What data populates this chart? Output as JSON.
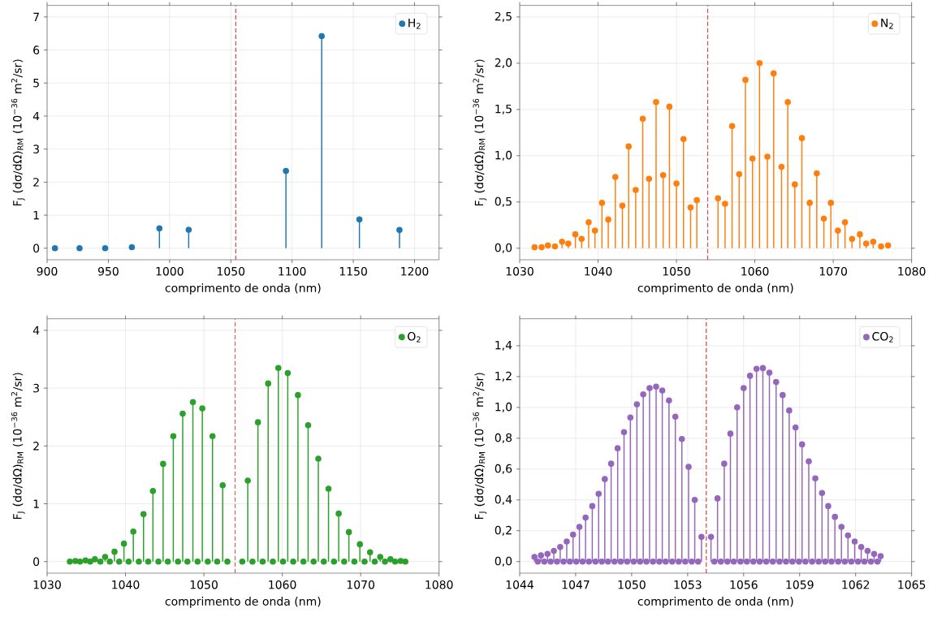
{
  "chart_data": [
    {
      "type": "lollipop",
      "xlabel": "comprimento de onda (nm)",
      "ylabel": "F$_{J}$ (dσ/dΩ)$_{RM}$ (10$^{−36}$ m$^{2}$/sr)",
      "xlim": [
        900,
        1220
      ],
      "ylim": [
        -0.35,
        7.35
      ],
      "xticks": [
        900,
        950,
        1000,
        1050,
        1100,
        1150,
        1200
      ],
      "yticks": [
        0,
        1,
        2,
        3,
        4,
        5,
        6,
        7
      ],
      "grid": true,
      "legend": "top right",
      "marker": "circle",
      "ref_lines": [
        {
          "axis": "x",
          "value": 1054,
          "color": "#d62728",
          "line_style": "dashed"
        }
      ],
      "series": [
        {
          "name": "H$_{2}$",
          "color": "#1f77b4",
          "x": [
            906.4,
            926.5,
            947.4,
            969.2,
            991.7,
            1015.6,
            1095,
            1124.2,
            1155,
            1187.7
          ],
          "values": [
            0,
            0,
            0,
            0.03,
            0.6,
            0.56,
            2.34,
            6.42,
            0.87,
            0.55
          ]
        }
      ]
    },
    {
      "type": "lollipop",
      "xlabel": "comprimento de onda (nm)",
      "ylabel": "F$_{J}$ (dσ/dΩ)$_{RM}$ (10$^{−36}$ m$^{2}$/sr)",
      "xlim": [
        1030,
        1080
      ],
      "ylim": [
        -0.125,
        2.625
      ],
      "xticks": [
        1030,
        1040,
        1050,
        1060,
        1070,
        1080
      ],
      "yticks": [
        {
          "value": 0,
          "label": "0,0"
        },
        {
          "value": 0.5,
          "label": "0,5"
        },
        {
          "value": 1,
          "label": "1,0"
        },
        {
          "value": 1.5,
          "label": "1,5"
        },
        {
          "value": 2,
          "label": "2,0"
        },
        {
          "value": 2.5,
          "label": "2,5"
        }
      ],
      "grid": true,
      "legend": "top right",
      "marker": "circle",
      "ref_lines": [
        {
          "axis": "x",
          "value": 1054,
          "color": "#d62728",
          "line_style": "dashed"
        }
      ],
      "series": [
        {
          "name": "N$_{2}$",
          "color": "#ff7f0e",
          "x": [
            1031.9,
            1032.8,
            1033.6,
            1034.5,
            1035.4,
            1036.2,
            1037.1,
            1037.9,
            1038.8,
            1039.6,
            1040.5,
            1041.3,
            1042.2,
            1043.1,
            1043.9,
            1044.8,
            1045.7,
            1046.5,
            1047.4,
            1048.3,
            1049.1,
            1050.0,
            1050.9,
            1051.8,
            1052.6,
            1055.3,
            1056.2,
            1057.1,
            1058.0,
            1058.8,
            1059.7,
            1060.6,
            1061.6,
            1062.4,
            1063.4,
            1064.2,
            1065.1,
            1066.0,
            1067.0,
            1067.9,
            1068.8,
            1069.7,
            1070.6,
            1071.5,
            1072.4,
            1073.4,
            1074.2,
            1075.1,
            1076.1,
            1077.0
          ],
          "values": [
            0.01,
            0.01,
            0.03,
            0.02,
            0.07,
            0.05,
            0.15,
            0.1,
            0.28,
            0.19,
            0.49,
            0.31,
            0.77,
            0.46,
            1.1,
            0.63,
            1.4,
            0.75,
            1.58,
            0.79,
            1.53,
            0.7,
            1.18,
            0.44,
            0.52,
            0.54,
            0.48,
            1.32,
            0.8,
            1.82,
            0.97,
            2.0,
            0.99,
            1.89,
            0.88,
            1.58,
            0.69,
            1.19,
            0.49,
            0.81,
            0.32,
            0.49,
            0.19,
            0.28,
            0.1,
            0.15,
            0.05,
            0.07,
            0.02,
            0.03
          ]
        }
      ]
    },
    {
      "type": "lollipop",
      "xlabel": "comprimento de onda (nm)",
      "ylabel": "F$_{J}$ (dσ/dΩ)$_{RM}$ (10$^{−36}$ m$^{2}$/sr)",
      "xlim": [
        1030,
        1080
      ],
      "ylim": [
        -0.2,
        4.2
      ],
      "xticks": [
        1030,
        1040,
        1050,
        1060,
        1070,
        1080
      ],
      "yticks": [
        0,
        1,
        2,
        3,
        4
      ],
      "grid": true,
      "legend": "top right",
      "marker": "circle",
      "ref_lines": [
        {
          "axis": "x",
          "value": 1054,
          "color": "#d62728",
          "line_style": "dashed"
        }
      ],
      "series": [
        {
          "name": "O$_{2}$",
          "color": "#2ca02c",
          "x": [
            1032.9,
            1033.6,
            1034.2,
            1034.9,
            1035.5,
            1036.1,
            1036.8,
            1037.4,
            1038.0,
            1038.6,
            1039.2,
            1039.8,
            1040.4,
            1041.0,
            1041.7,
            1042.3,
            1042.9,
            1043.5,
            1044.2,
            1044.8,
            1045.4,
            1046.1,
            1046.7,
            1047.3,
            1047.9,
            1048.6,
            1049.2,
            1049.8,
            1050.5,
            1051.1,
            1051.7,
            1052.4,
            1053.0,
            1054.9,
            1055.6,
            1056.2,
            1056.9,
            1057.5,
            1058.2,
            1058.8,
            1059.5,
            1060.1,
            1060.7,
            1061.4,
            1062.0,
            1062.7,
            1063.3,
            1064.0,
            1064.6,
            1065.3,
            1065.9,
            1066.6,
            1067.2,
            1067.9,
            1068.5,
            1069.2,
            1069.9,
            1070.5,
            1071.2,
            1071.8,
            1072.5,
            1073.1,
            1073.8,
            1074.4,
            1075.1,
            1075.7
          ],
          "values": [
            0,
            0.01,
            0,
            0.02,
            0,
            0.04,
            0,
            0.08,
            0,
            0.17,
            0,
            0.31,
            0,
            0.52,
            0,
            0.82,
            0,
            1.22,
            0,
            1.69,
            0,
            2.17,
            0,
            2.56,
            0,
            2.76,
            0,
            2.65,
            0,
            2.17,
            0,
            1.32,
            0,
            0,
            1.4,
            0,
            2.41,
            0,
            3.08,
            0,
            3.35,
            0,
            3.26,
            0,
            2.88,
            0,
            2.36,
            0,
            1.78,
            0,
            1.26,
            0,
            0.83,
            0,
            0.51,
            0,
            0.3,
            0,
            0.16,
            0,
            0.08,
            0,
            0.04,
            0,
            0.01,
            0
          ]
        }
      ]
    },
    {
      "type": "lollipop",
      "xlabel": "comprimento de onda (nm)",
      "ylabel": "F$_{J}$ (dσ/dΩ)$_{RM}$ (10$^{−36}$ m$^{2}$/sr)",
      "xlim": [
        1044,
        1065
      ],
      "ylim": [
        -0.075,
        1.575
      ],
      "xticks": [
        1044,
        1047,
        1050,
        1053,
        1056,
        1059,
        1062,
        1065
      ],
      "yticks": [
        {
          "value": 0,
          "label": "0,0"
        },
        {
          "value": 0.2,
          "label": "0,2"
        },
        {
          "value": 0.4,
          "label": "0,4"
        },
        {
          "value": 0.6,
          "label": "0,6"
        },
        {
          "value": 0.8,
          "label": "0,8"
        },
        {
          "value": 1,
          "label": "1,0"
        },
        {
          "value": 1.2,
          "label": "1,2"
        },
        {
          "value": 1.4,
          "label": "1,4"
        }
      ],
      "grid": true,
      "legend": "top right",
      "marker": "circle",
      "ref_lines": [
        {
          "axis": "x",
          "value": 1054,
          "color": "#d62728",
          "line_style": "dashed"
        }
      ],
      "series": [
        {
          "name": "CO$_{2}$",
          "color": "#9467bd",
          "x": [
            1044.79,
            1045.14,
            1045.49,
            1045.83,
            1046.17,
            1046.52,
            1046.86,
            1047.2,
            1047.53,
            1047.89,
            1048.23,
            1048.56,
            1048.9,
            1049.25,
            1049.59,
            1049.93,
            1050.28,
            1050.62,
            1050.96,
            1051.31,
            1051.64,
            1052.0,
            1052.34,
            1052.69,
            1053.05,
            1053.38,
            1053.74,
            1054.25,
            1054.6,
            1054.96,
            1055.29,
            1055.65,
            1056.0,
            1056.34,
            1056.69,
            1057.03,
            1057.38,
            1057.74,
            1058.09,
            1058.44,
            1058.78,
            1059.13,
            1059.49,
            1059.84,
            1060.2,
            1060.53,
            1060.89,
            1061.24,
            1061.59,
            1061.95,
            1062.3,
            1062.64,
            1062.99,
            1063.34,
            1044.97,
            1045.32,
            1045.66,
            1046.0,
            1046.35,
            1046.69,
            1047.03,
            1047.37,
            1047.71,
            1048.06,
            1048.4,
            1048.73,
            1049.08,
            1049.42,
            1049.76,
            1050.11,
            1050.45,
            1050.79,
            1051.14,
            1051.48,
            1051.82,
            1052.17,
            1052.52,
            1052.87,
            1053.22,
            1053.56,
            1054.43,
            1054.78,
            1055.13,
            1055.47,
            1055.83,
            1056.17,
            1056.52,
            1056.86,
            1057.21,
            1057.56,
            1057.92,
            1058.27,
            1058.61,
            1058.96,
            1059.31,
            1059.67,
            1060.02,
            1060.37,
            1060.71,
            1061.07,
            1061.42,
            1061.77,
            1062.13,
            1062.47,
            1062.82,
            1063.17
          ],
          "values": [
            0.03,
            0.04,
            0.05,
            0.07,
            0.095,
            0.13,
            0.175,
            0.225,
            0.285,
            0.36,
            0.44,
            0.535,
            0.635,
            0.735,
            0.84,
            0.935,
            1.02,
            1.085,
            1.125,
            1.135,
            1.11,
            1.045,
            0.94,
            0.795,
            0.615,
            0.4,
            0.16,
            0.16,
            0.41,
            0.635,
            0.83,
            1.0,
            1.125,
            1.205,
            1.25,
            1.255,
            1.225,
            1.165,
            1.08,
            0.98,
            0.87,
            0.76,
            0.65,
            0.54,
            0.445,
            0.36,
            0.29,
            0.225,
            0.17,
            0.13,
            0.095,
            0.07,
            0.05,
            0.035,
            0,
            0,
            0,
            0,
            0,
            0,
            0,
            0,
            0,
            0,
            0,
            0,
            0,
            0,
            0,
            0,
            0,
            0,
            0,
            0,
            0,
            0,
            0,
            0,
            0,
            0,
            0,
            0,
            0,
            0,
            0,
            0,
            0,
            0,
            0,
            0,
            0,
            0,
            0,
            0,
            0,
            0,
            0,
            0,
            0,
            0,
            0,
            0,
            0,
            0,
            0,
            0
          ]
        }
      ]
    }
  ]
}
